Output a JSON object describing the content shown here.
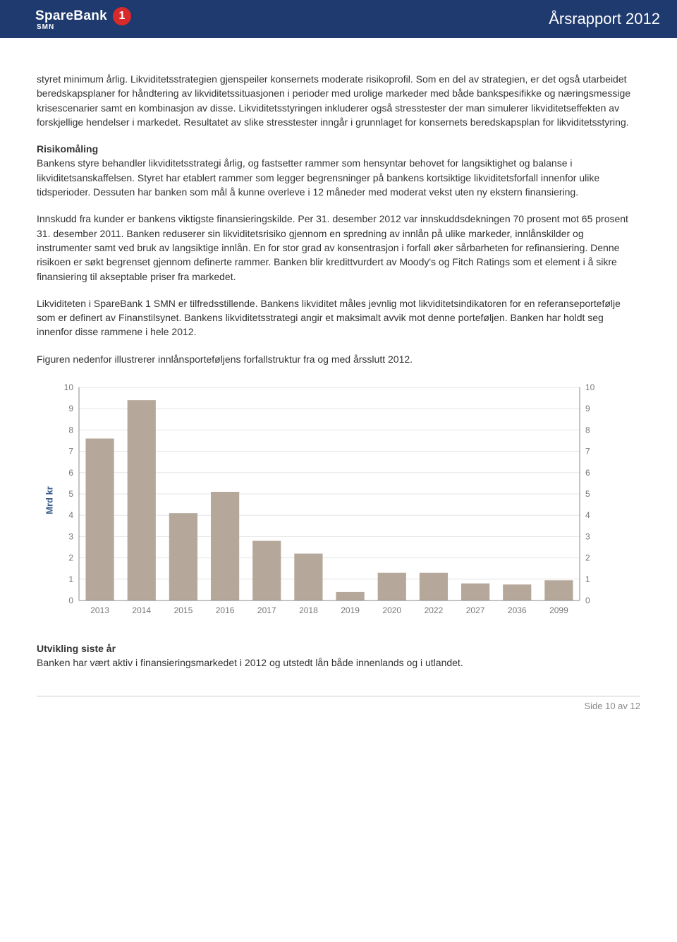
{
  "header": {
    "brand_main": "SpareBank",
    "brand_sub": "SMN",
    "brand_badge": "1",
    "title": "Årsrapport 2012"
  },
  "body": {
    "p1": "styret minimum årlig. Likviditetsstrategien gjenspeiler konsernets moderate risikoprofil. Som en del av strategien, er det også utarbeidet beredskapsplaner for håndtering av likviditetssituasjonen i perioder med urolige markeder med både bankspesifikke og næringsmessige krisescenarier samt en kombinasjon av disse. Likviditetsstyringen inkluderer også stresstester der man simulerer likviditetseffekten av forskjellige hendelser i markedet. Resultatet av slike stresstester inngår i grunnlaget for konsernets beredskapsplan for likviditetsstyring.",
    "h1": "Risikomåling",
    "p2": "Bankens styre behandler likviditetsstrategi årlig, og fastsetter rammer som hensyntar behovet for langsiktighet og balanse i likviditetsanskaffelsen. Styret har etablert rammer som legger begrensninger på bankens kortsiktige likviditetsforfall innenfor ulike tidsperioder. Dessuten har banken som mål å kunne overleve i 12 måneder med moderat vekst uten ny ekstern finansiering.",
    "p3": "Innskudd fra kunder er bankens viktigste finansieringskilde. Per 31. desember 2012 var innskuddsdekningen 70 prosent mot 65 prosent 31. desember 2011. Banken reduserer sin likviditetsrisiko gjennom en spredning av innlån på ulike markeder, innlånskilder og instrumenter samt ved bruk av langsiktige innlån. En for stor grad av konsentrasjon i forfall øker sårbarheten for refinansiering. Denne risikoen er søkt begrenset gjennom definerte rammer. Banken blir kredittvurdert av Moody's og Fitch Ratings som et element i å sikre finansiering til akseptable priser fra markedet.",
    "p4": "Likviditeten i SpareBank 1 SMN er tilfredsstillende. Bankens likviditet måles jevnlig mot likviditetsindikatoren for en referanseportefølje som er definert av Finanstilsynet. Bankens likviditetsstrategi angir et maksimalt avvik mot denne porteføljen. Banken har holdt seg innenfor disse rammene i hele 2012.",
    "p5": "Figuren nedenfor illustrerer innlånsporteføljens forfallstruktur fra og med årsslutt 2012.",
    "h2": "Utvikling siste år",
    "p6": "Banken har vært aktiv i finansieringsmarkedet i 2012 og utstedt lån både innenlands og i utlandet."
  },
  "chart": {
    "type": "bar",
    "ylabel": "Mrd kr",
    "ylim": [
      0,
      10
    ],
    "ytick_step": 1,
    "categories": [
      "2013",
      "2014",
      "2015",
      "2016",
      "2017",
      "2018",
      "2019",
      "2020",
      "2022",
      "2027",
      "2036",
      "2099"
    ],
    "values": [
      7.6,
      9.4,
      4.1,
      5.1,
      2.8,
      2.2,
      0.4,
      1.3,
      1.3,
      0.8,
      0.75,
      0.95
    ],
    "bar_color": "#b5a89a",
    "axis_color": "#888888",
    "grid_color": "#e5e5e5",
    "tick_label_color": "#777777",
    "tick_fontsize": 12,
    "ylabel_color": "#3a5a8a",
    "background": "#ffffff",
    "bar_width_ratio": 0.68
  },
  "footer": {
    "page": "Side 10 av 12"
  }
}
